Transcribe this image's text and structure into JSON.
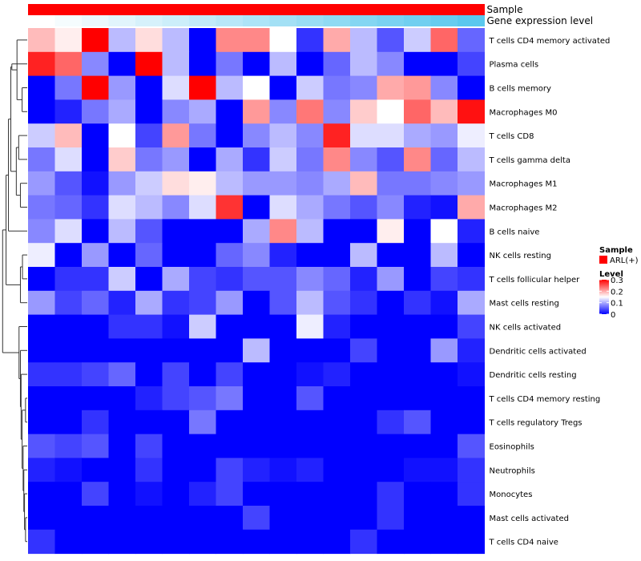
{
  "chart_data": {
    "type": "heatmap",
    "title": "",
    "annotation_tracks": [
      {
        "label": "Sample",
        "type": "categorical",
        "color": "#ff0000"
      },
      {
        "label": "Gene expression level",
        "type": "gradient",
        "color_low": "#ffffff",
        "color_high": "#5bc8ee"
      }
    ],
    "rows": [
      "T cells CD4 memory activated",
      "Plasma cells",
      "B cells memory",
      "Macrophages M0",
      "T cells CD8",
      "T cells gamma delta",
      "Macrophages M1",
      "Macrophages M2",
      "B cells naive",
      "NK cells resting",
      "T cells follicular helper",
      "Mast cells resting",
      "NK cells activated",
      "Dendritic cells activated",
      "Dendritic cells resting",
      "T cells CD4 memory resting",
      "T cells regulatory  Tregs",
      "Eosinophils",
      "Neutrophils",
      "Monocytes",
      "Mast cells activated",
      "T cells CD4 naive"
    ],
    "n_columns": 17,
    "values": [
      [
        0.19,
        0.16,
        0.3,
        0.11,
        0.17,
        0.11,
        0.0,
        0.22,
        0.22,
        0.15,
        0.03,
        0.2,
        0.11,
        0.05,
        0.12,
        0.24,
        0.06
      ],
      [
        0.28,
        0.24,
        0.08,
        0.0,
        0.3,
        0.11,
        0.0,
        0.07,
        0.0,
        0.11,
        0.0,
        0.06,
        0.11,
        0.08,
        0.0,
        0.0,
        0.04
      ],
      [
        0.0,
        0.07,
        0.3,
        0.09,
        0.0,
        0.13,
        0.3,
        0.11,
        0.15,
        0.0,
        0.12,
        0.07,
        0.08,
        0.2,
        0.21,
        0.08,
        0.0
      ],
      [
        0.0,
        0.02,
        0.07,
        0.1,
        0.0,
        0.08,
        0.1,
        0.0,
        0.21,
        0.08,
        0.23,
        0.08,
        0.18,
        0.15,
        0.24,
        0.19,
        0.29
      ],
      [
        0.12,
        0.19,
        0.0,
        0.15,
        0.04,
        0.21,
        0.07,
        0.0,
        0.08,
        0.11,
        0.08,
        0.28,
        0.13,
        0.13,
        0.1,
        0.09,
        0.14
      ],
      [
        0.07,
        0.13,
        0.0,
        0.18,
        0.07,
        0.09,
        0.0,
        0.1,
        0.03,
        0.12,
        0.07,
        0.22,
        0.08,
        0.05,
        0.22,
        0.06,
        0.11
      ],
      [
        0.09,
        0.05,
        0.01,
        0.09,
        0.12,
        0.17,
        0.16,
        0.11,
        0.09,
        0.09,
        0.08,
        0.1,
        0.19,
        0.07,
        0.07,
        0.08,
        0.09
      ],
      [
        0.07,
        0.06,
        0.03,
        0.13,
        0.11,
        0.08,
        0.13,
        0.27,
        0.0,
        0.13,
        0.1,
        0.07,
        0.05,
        0.08,
        0.02,
        0.01,
        0.2
      ],
      [
        0.08,
        0.13,
        0.0,
        0.11,
        0.05,
        0.0,
        0.0,
        0.0,
        0.1,
        0.22,
        0.11,
        0.0,
        0.0,
        0.16,
        0.0,
        0.15,
        0.02
      ],
      [
        0.14,
        0.0,
        0.09,
        0.0,
        0.06,
        0.0,
        0.0,
        0.06,
        0.08,
        0.02,
        0.0,
        0.0,
        0.11,
        0.0,
        0.0,
        0.11,
        0.0
      ],
      [
        0.0,
        0.03,
        0.03,
        0.12,
        0.0,
        0.1,
        0.04,
        0.03,
        0.05,
        0.05,
        0.08,
        0.06,
        0.02,
        0.09,
        0.0,
        0.04,
        0.03
      ],
      [
        0.09,
        0.04,
        0.06,
        0.02,
        0.1,
        0.03,
        0.04,
        0.09,
        0.0,
        0.05,
        0.11,
        0.05,
        0.03,
        0.0,
        0.03,
        0.01,
        0.1
      ],
      [
        0.0,
        0.0,
        0.0,
        0.03,
        0.03,
        0.01,
        0.12,
        0.0,
        0.0,
        0.0,
        0.14,
        0.02,
        0.0,
        0.0,
        0.0,
        0.0,
        0.04
      ],
      [
        0.0,
        0.0,
        0.0,
        0.0,
        0.0,
        0.0,
        0.0,
        0.0,
        0.11,
        0.0,
        0.0,
        0.0,
        0.04,
        0.0,
        0.0,
        0.09,
        0.02
      ],
      [
        0.03,
        0.03,
        0.04,
        0.06,
        0.0,
        0.04,
        0.0,
        0.04,
        0.0,
        0.0,
        0.01,
        0.02,
        0.0,
        0.0,
        0.0,
        0.0,
        0.01
      ],
      [
        0.0,
        0.0,
        0.0,
        0.0,
        0.02,
        0.04,
        0.05,
        0.07,
        0.0,
        0.0,
        0.05,
        0.0,
        0.0,
        0.0,
        0.0,
        0.0,
        0.0
      ],
      [
        0.0,
        0.0,
        0.03,
        0.0,
        0.0,
        0.0,
        0.07,
        0.0,
        0.0,
        0.0,
        0.0,
        0.0,
        0.0,
        0.03,
        0.05,
        0.0,
        0.0
      ],
      [
        0.05,
        0.04,
        0.05,
        0.0,
        0.04,
        0.0,
        0.0,
        0.0,
        0.0,
        0.0,
        0.0,
        0.0,
        0.0,
        0.0,
        0.0,
        0.0,
        0.05
      ],
      [
        0.02,
        0.01,
        0.0,
        0.0,
        0.03,
        0.0,
        0.0,
        0.04,
        0.02,
        0.01,
        0.02,
        0.0,
        0.0,
        0.0,
        0.01,
        0.01,
        0.03
      ],
      [
        0.0,
        0.0,
        0.04,
        0.0,
        0.01,
        0.0,
        0.02,
        0.04,
        0.0,
        0.0,
        0.0,
        0.0,
        0.0,
        0.03,
        0.0,
        0.0,
        0.03
      ],
      [
        0.0,
        0.0,
        0.0,
        0.0,
        0.0,
        0.0,
        0.0,
        0.0,
        0.04,
        0.0,
        0.0,
        0.0,
        0.0,
        0.03,
        0.0,
        0.0,
        0.0
      ],
      [
        0.03,
        0.0,
        0.0,
        0.0,
        0.0,
        0.0,
        0.0,
        0.0,
        0.0,
        0.0,
        0.0,
        0.0,
        0.03,
        0.0,
        0.0,
        0.0,
        0.0
      ]
    ],
    "gene_expression_track": [
      0.0,
      0.06,
      0.12,
      0.18,
      0.25,
      0.31,
      0.37,
      0.43,
      0.5,
      0.56,
      0.62,
      0.68,
      0.75,
      0.81,
      0.87,
      0.93,
      1.0
    ],
    "color_scale": {
      "min": 0,
      "max": 0.3,
      "colors": [
        "#0000ff",
        "#ffffff",
        "#ff0000"
      ]
    },
    "legend": {
      "position": "right",
      "sample_title": "Sample",
      "sample_entries": [
        {
          "label": "ARL(+)",
          "color": "#ff0000"
        }
      ],
      "level_title": "Level",
      "level_ticks": [
        {
          "value": 0.3,
          "label": "0.3"
        },
        {
          "value": 0.2,
          "label": "0.2"
        },
        {
          "value": 0.1,
          "label": "0.1"
        },
        {
          "value": 0,
          "label": "0"
        }
      ]
    },
    "row_dendrogram": {
      "merges": [
        [
          2,
          3,
          0.15
        ],
        [
          0,
          22,
          0.3
        ],
        [
          1,
          23,
          0.45
        ],
        [
          6,
          7,
          0.2
        ],
        [
          4,
          5,
          0.25
        ],
        [
          25,
          26,
          0.32
        ],
        [
          24,
          27,
          0.48
        ],
        [
          8,
          28,
          0.55
        ],
        [
          9,
          10,
          0.14
        ],
        [
          11,
          30,
          0.2
        ],
        [
          29,
          31,
          0.62
        ],
        [
          15,
          16,
          0.05
        ],
        [
          20,
          21,
          0.05
        ],
        [
          19,
          34,
          0.08
        ],
        [
          18,
          35,
          0.1
        ],
        [
          17,
          36,
          0.12
        ],
        [
          33,
          37,
          0.15
        ],
        [
          14,
          38,
          0.18
        ],
        [
          13,
          39,
          0.2
        ],
        [
          12,
          40,
          0.24
        ],
        [
          32,
          41,
          0.72
        ],
        [
          42,
          0,
          0
        ],
        [
          0,
          0,
          0
        ]
      ],
      "note": ""
    }
  }
}
